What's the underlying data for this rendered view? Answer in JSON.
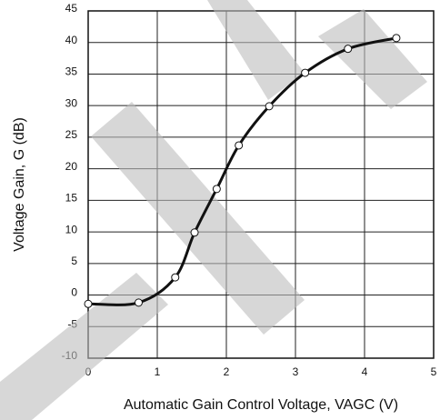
{
  "chart_data": {
    "type": "line",
    "xlabel": "Automatic Gain Control Voltage, VAGC (V)",
    "ylabel": "Voltage Gain, G (dB)",
    "x": [
      0,
      0.73,
      1.26,
      1.54,
      1.86,
      2.18,
      2.62,
      3.14,
      3.76,
      4.46
    ],
    "series": [
      {
        "color": "#111111",
        "values": [
          -1.4,
          -1.2,
          2.8,
          9.9,
          16.8,
          23.7,
          29.9,
          35.2,
          39,
          40.7
        ]
      }
    ],
    "xlim": [
      0,
      5
    ],
    "xticks": [
      0,
      1,
      2,
      3,
      4,
      5
    ],
    "ylim": [
      -10,
      45
    ],
    "yticks": [
      -10,
      -5,
      0,
      5,
      10,
      15,
      20,
      25,
      30,
      35,
      40,
      45
    ],
    "grid": true,
    "markers": true
  }
}
